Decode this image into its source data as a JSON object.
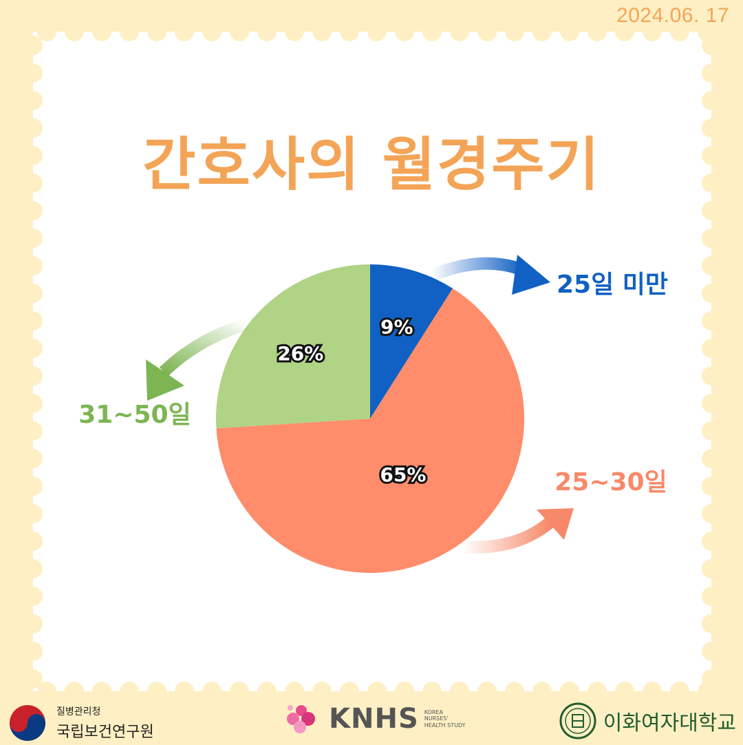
{
  "date": "2024.06. 17",
  "title": "간호사의 월경주기",
  "chart_data": {
    "type": "pie",
    "title": "간호사의 월경주기",
    "slices": [
      {
        "label": "25일 미만",
        "value": 9,
        "display": "9%",
        "color": "#1160c4"
      },
      {
        "label": "25~30일",
        "value": 65,
        "display": "65%",
        "color": "#ff8c6a"
      },
      {
        "label": "31~50일",
        "value": 26,
        "display": "26%",
        "color": "#b0d385"
      }
    ],
    "label_colors": {
      "25일 미만": "#1160c4",
      "25~30일": "#f7896a",
      "31~50일": "#7db552"
    }
  },
  "footer": {
    "kdca_small": "질병관리청",
    "kdca_name": "국립보건연구원",
    "knhs_brand": "KNHS",
    "knhs_sub": [
      "KOREA",
      "NURSES'",
      "HEALTH STUDY"
    ],
    "ewha_name": "이화여자대학교"
  },
  "colors": {
    "background": "#fef0c4",
    "card": "#ffffff",
    "accent_title": "#f3a456"
  }
}
